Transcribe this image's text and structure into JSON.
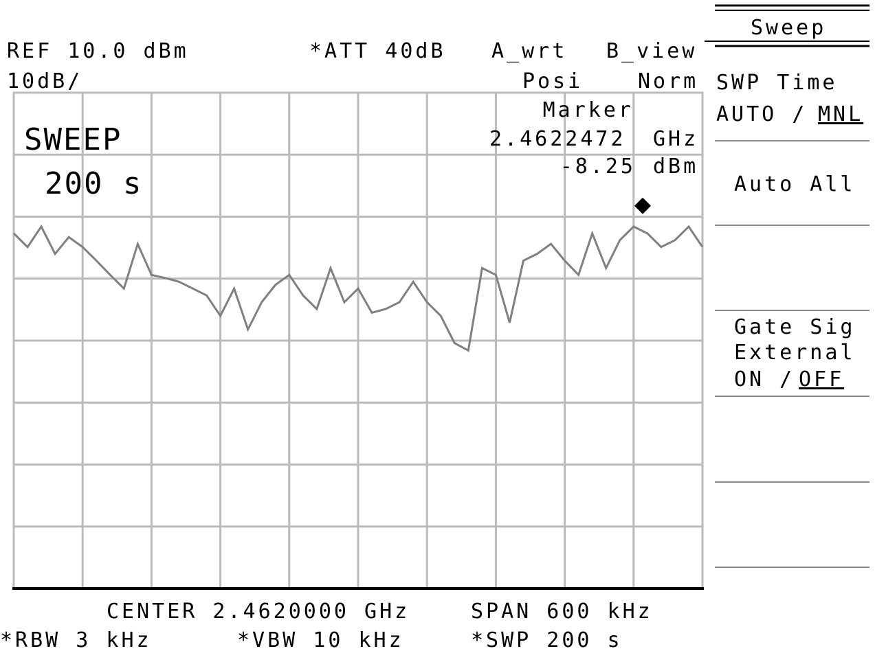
{
  "header": {
    "ref": "REF 10.0 dBm",
    "att": "*ATT 40dB",
    "a_mode": "A_wrt",
    "b_mode": "B_view",
    "scale": "10dB/",
    "detector": "Posi",
    "b_detector": "Norm"
  },
  "overlay": {
    "title": "SWEEP",
    "value": "200 s"
  },
  "marker": {
    "label": "Marker",
    "freq": "2.4622472",
    "freq_unit": "GHz",
    "level": -8.25,
    "level_unit": "dBm"
  },
  "trace": {
    "ylim": [
      -70,
      10
    ],
    "values": [
      -12.7,
      -14.9,
      -11.6,
      -16.0,
      -13.3,
      -14.9,
      -17.1,
      -19.4,
      -21.6,
      -14.4,
      -19.4,
      -19.9,
      -20.5,
      -21.6,
      -22.7,
      -26.0,
      -21.6,
      -28.2,
      -23.8,
      -21.0,
      -19.4,
      -22.7,
      -24.9,
      -18.3,
      -23.8,
      -21.6,
      -25.5,
      -24.9,
      -23.8,
      -20.5,
      -23.8,
      -26.0,
      -30.4,
      -31.6,
      -18.3,
      -19.4,
      -27.1,
      -17.1,
      -16.0,
      -14.4,
      -17.1,
      -19.4,
      -12.7,
      -18.3,
      -13.8,
      -11.6,
      -12.7,
      -14.9,
      -13.8,
      -11.6,
      -14.9
    ]
  },
  "footer": {
    "center": "CENTER 2.4620000 GHz",
    "span": "SPAN 600 kHz",
    "rbw": "*RBW 3 kHz",
    "vbw": "*VBW 10 kHz",
    "swp": "*SWP 200 s"
  },
  "softkeys": {
    "title": "Sweep",
    "swp_time": "SWP Time",
    "swp_time_opt": "AUTO /",
    "swp_time_sel": "MNL",
    "auto_all": "Auto All",
    "gate1": "Gate Sig",
    "gate2": "External",
    "gate_opt": "ON /",
    "gate_sel": "OFF"
  }
}
